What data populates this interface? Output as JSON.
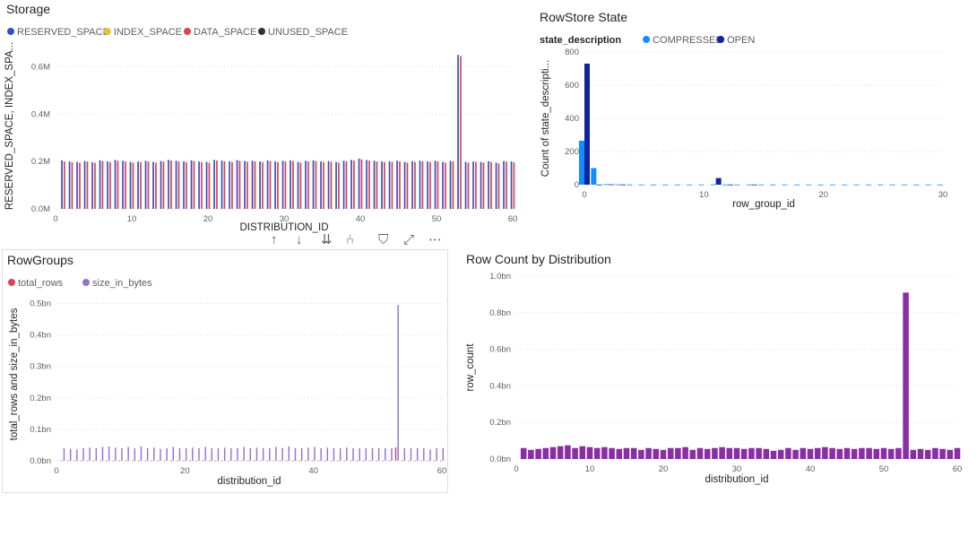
{
  "charts": [
    {
      "id": "storage",
      "chart_data": {
        "type": "bar",
        "title": "Storage",
        "xlabel": "DISTRIBUTION_ID",
        "ylabel": "RESERVED_SPACE, INDEX_SPA...",
        "xlim": [
          0,
          60
        ],
        "ylim": [
          0,
          0.7
        ],
        "x_ticks": [
          0,
          10,
          20,
          30,
          40,
          50,
          60
        ],
        "y_ticks": [
          {
            "v": 0,
            "label": "0.0M"
          },
          {
            "v": 0.2,
            "label": "0.2M"
          },
          {
            "v": 0.4,
            "label": "0.4M"
          },
          {
            "v": 0.6,
            "label": "0.6M"
          }
        ],
        "grid": true,
        "legend_position": "top-left",
        "x": [
          1,
          2,
          3,
          4,
          5,
          6,
          7,
          8,
          9,
          10,
          11,
          12,
          13,
          14,
          15,
          16,
          17,
          18,
          19,
          20,
          21,
          22,
          23,
          24,
          25,
          26,
          27,
          28,
          29,
          30,
          31,
          32,
          33,
          34,
          35,
          36,
          37,
          38,
          39,
          40,
          41,
          42,
          43,
          44,
          45,
          46,
          47,
          48,
          49,
          50,
          51,
          52,
          53,
          54,
          55,
          56,
          57,
          58,
          59,
          60
        ],
        "series": [
          {
            "name": "RESERVED_SPACE",
            "color": "#3a4cc0",
            "values": [
              0.205,
              0.2,
              0.198,
              0.202,
              0.197,
              0.205,
              0.2,
              0.207,
              0.203,
              0.198,
              0.2,
              0.203,
              0.198,
              0.202,
              0.207,
              0.203,
              0.2,
              0.205,
              0.2,
              0.198,
              0.207,
              0.204,
              0.2,
              0.206,
              0.202,
              0.203,
              0.2,
              0.205,
              0.2,
              0.203,
              0.205,
              0.198,
              0.203,
              0.205,
              0.2,
              0.202,
              0.198,
              0.203,
              0.207,
              0.212,
              0.206,
              0.203,
              0.2,
              0.201,
              0.203,
              0.198,
              0.201,
              0.203,
              0.2,
              0.203,
              0.198,
              0.203,
              0.65,
              0.198,
              0.2,
              0.198,
              0.201,
              0.195,
              0.202,
              0.2
            ]
          },
          {
            "name": "INDEX_SPACE",
            "color": "#e8c234",
            "values": [
              0,
              0,
              0,
              0,
              0,
              0,
              0,
              0,
              0,
              0,
              0,
              0,
              0,
              0,
              0,
              0,
              0,
              0,
              0,
              0,
              0,
              0,
              0,
              0,
              0,
              0,
              0,
              0,
              0,
              0,
              0,
              0,
              0,
              0,
              0,
              0,
              0,
              0,
              0,
              0,
              0,
              0,
              0,
              0,
              0,
              0,
              0,
              0,
              0,
              0,
              0,
              0,
              0,
              0,
              0,
              0,
              0,
              0,
              0,
              0
            ]
          },
          {
            "name": "DATA_SPACE",
            "color": "#d64550",
            "values": [
              0.2,
              0.197,
              0.195,
              0.2,
              0.194,
              0.202,
              0.197,
              0.203,
              0.2,
              0.195,
              0.197,
              0.2,
              0.195,
              0.199,
              0.204,
              0.2,
              0.197,
              0.202,
              0.197,
              0.195,
              0.204,
              0.201,
              0.197,
              0.203,
              0.199,
              0.2,
              0.197,
              0.202,
              0.197,
              0.2,
              0.202,
              0.195,
              0.2,
              0.202,
              0.197,
              0.199,
              0.195,
              0.2,
              0.204,
              0.209,
              0.203,
              0.2,
              0.197,
              0.198,
              0.2,
              0.195,
              0.198,
              0.2,
              0.197,
              0.2,
              0.195,
              0.2,
              0.645,
              0.195,
              0.197,
              0.195,
              0.198,
              0.192,
              0.199,
              0.197
            ]
          },
          {
            "name": "UNUSED_SPACE",
            "color": "#333333",
            "values": [
              0,
              0,
              0,
              0,
              0,
              0,
              0,
              0,
              0,
              0,
              0,
              0,
              0,
              0,
              0,
              0,
              0,
              0,
              0,
              0,
              0,
              0,
              0,
              0,
              0,
              0,
              0,
              0,
              0,
              0,
              0,
              0,
              0,
              0,
              0,
              0,
              0,
              0,
              0,
              0,
              0,
              0,
              0,
              0,
              0,
              0,
              0,
              0,
              0,
              0,
              0,
              0,
              0,
              0,
              0,
              0,
              0,
              0,
              0,
              0
            ]
          }
        ]
      }
    },
    {
      "id": "rowstore",
      "chart_data": {
        "type": "bar",
        "title": "RowStore State",
        "legend_title": "state_description",
        "xlabel": "row_group_id",
        "ylabel": "Count of state_descripti...",
        "xlim": [
          0,
          30
        ],
        "ylim": [
          0,
          800
        ],
        "x_ticks": [
          0,
          10,
          20,
          30
        ],
        "y_ticks": [
          {
            "v": 0,
            "label": "0"
          },
          {
            "v": 200,
            "label": "200"
          },
          {
            "v": 400,
            "label": "400"
          },
          {
            "v": 600,
            "label": "600"
          },
          {
            "v": 800,
            "label": "800"
          }
        ],
        "grid": true,
        "legend_position": "top-left",
        "x": [
          0,
          1,
          2,
          3,
          4,
          5,
          6,
          7,
          8,
          9,
          10,
          11,
          12,
          13,
          14,
          15,
          16,
          17,
          18,
          19,
          20,
          21,
          22,
          23,
          24,
          25,
          26,
          27,
          28,
          29,
          30
        ],
        "series": [
          {
            "name": "COMPRESSED",
            "color": "#118dff",
            "values": [
              265,
              100,
              3,
              2,
              1,
              1,
              1,
              1,
              1,
              1,
              1,
              2,
              1,
              1,
              1,
              1,
              1,
              1,
              1,
              1,
              1,
              1,
              1,
              1,
              1,
              1,
              1,
              1,
              1,
              1,
              1
            ]
          },
          {
            "name": "OPEN",
            "color": "#12239e",
            "values": [
              730,
              1,
              2,
              1,
              0,
              0,
              0,
              0,
              0,
              0,
              0,
              40,
              1,
              0,
              1,
              0,
              0,
              0,
              0,
              0,
              0,
              0,
              0,
              0,
              0,
              0,
              0,
              0,
              0,
              0,
              0
            ]
          }
        ]
      }
    },
    {
      "id": "rowgroups",
      "chart_data": {
        "type": "bar",
        "title": "RowGroups",
        "xlabel": "distribution_id",
        "ylabel": "total_rows and size_in_bytes",
        "xlim": [
          0,
          60
        ],
        "ylim": [
          0,
          0.55
        ],
        "x_ticks": [
          0,
          20,
          40,
          60
        ],
        "y_ticks": [
          {
            "v": 0,
            "label": "0.0bn"
          },
          {
            "v": 0.1,
            "label": "0.1bn"
          },
          {
            "v": 0.2,
            "label": "0.2bn"
          },
          {
            "v": 0.3,
            "label": "0.3bn"
          },
          {
            "v": 0.4,
            "label": "0.4bn"
          },
          {
            "v": 0.5,
            "label": "0.5bn"
          }
        ],
        "grid": true,
        "legend_position": "top-left",
        "x": [
          1,
          2,
          3,
          4,
          5,
          6,
          7,
          8,
          9,
          10,
          11,
          12,
          13,
          14,
          15,
          16,
          17,
          18,
          19,
          20,
          21,
          22,
          23,
          24,
          25,
          26,
          27,
          28,
          29,
          30,
          31,
          32,
          33,
          34,
          35,
          36,
          37,
          38,
          39,
          40,
          41,
          42,
          43,
          44,
          45,
          46,
          47,
          48,
          49,
          50,
          51,
          52,
          53,
          54,
          55,
          56,
          57,
          58,
          59,
          60
        ],
        "series": [
          {
            "name": "total_rows",
            "color": "#d64550",
            "values": [
              0.001,
              0.001,
              0.001,
              0.001,
              0.001,
              0.001,
              0.001,
              0.001,
              0.001,
              0.001,
              0.001,
              0.001,
              0.001,
              0.001,
              0.001,
              0.001,
              0.001,
              0.001,
              0.001,
              0.001,
              0.001,
              0.001,
              0.001,
              0.001,
              0.001,
              0.001,
              0.001,
              0.001,
              0.001,
              0.001,
              0.001,
              0.001,
              0.001,
              0.001,
              0.001,
              0.001,
              0.001,
              0.001,
              0.001,
              0.001,
              0.001,
              0.001,
              0.001,
              0.001,
              0.001,
              0.001,
              0.001,
              0.001,
              0.001,
              0.001,
              0.001,
              0.001,
              0.042,
              0.001,
              0.001,
              0.001,
              0.001,
              0.001,
              0.001,
              0.001
            ]
          },
          {
            "name": "size_in_bytes",
            "color": "#8e72d6",
            "values": [
              0.04,
              0.038,
              0.036,
              0.04,
              0.042,
              0.04,
              0.044,
              0.046,
              0.042,
              0.04,
              0.044,
              0.04,
              0.046,
              0.04,
              0.042,
              0.038,
              0.04,
              0.044,
              0.04,
              0.04,
              0.042,
              0.04,
              0.044,
              0.04,
              0.04,
              0.042,
              0.04,
              0.04,
              0.044,
              0.04,
              0.042,
              0.04,
              0.04,
              0.044,
              0.04,
              0.046,
              0.04,
              0.04,
              0.042,
              0.044,
              0.04,
              0.042,
              0.04,
              0.04,
              0.042,
              0.04,
              0.04,
              0.04,
              0.04,
              0.04,
              0.04,
              0.04,
              0.495,
              0.04,
              0.04,
              0.04,
              0.04,
              0.036,
              0.04,
              0.04
            ]
          }
        ]
      }
    },
    {
      "id": "rowcount",
      "chart_data": {
        "type": "bar",
        "title": "Row Count by Distribution",
        "xlabel": "distribution_id",
        "ylabel": "row_count",
        "xlim": [
          0,
          60
        ],
        "ylim": [
          0,
          1.0
        ],
        "x_ticks": [
          0,
          10,
          20,
          30,
          40,
          50,
          60
        ],
        "y_ticks": [
          {
            "v": 0,
            "label": "0.0bn"
          },
          {
            "v": 0.2,
            "label": "0.2bn"
          },
          {
            "v": 0.4,
            "label": "0.4bn"
          },
          {
            "v": 0.6,
            "label": "0.6bn"
          },
          {
            "v": 0.8,
            "label": "0.8bn"
          },
          {
            "v": 1.0,
            "label": "1.0bn"
          }
        ],
        "grid": true,
        "x": [
          1,
          2,
          3,
          4,
          5,
          6,
          7,
          8,
          9,
          10,
          11,
          12,
          13,
          14,
          15,
          16,
          17,
          18,
          19,
          20,
          21,
          22,
          23,
          24,
          25,
          26,
          27,
          28,
          29,
          30,
          31,
          32,
          33,
          34,
          35,
          36,
          37,
          38,
          39,
          40,
          41,
          42,
          43,
          44,
          45,
          46,
          47,
          48,
          49,
          50,
          51,
          52,
          53,
          54,
          55,
          56,
          57,
          58,
          59,
          60
        ],
        "series": [
          {
            "name": "row_count",
            "color": "#8a2ea3",
            "values": [
              0.06,
              0.05,
              0.055,
              0.06,
              0.065,
              0.07,
              0.075,
              0.06,
              0.07,
              0.065,
              0.06,
              0.065,
              0.06,
              0.055,
              0.06,
              0.06,
              0.05,
              0.06,
              0.055,
              0.05,
              0.06,
              0.06,
              0.065,
              0.05,
              0.06,
              0.055,
              0.06,
              0.065,
              0.06,
              0.06,
              0.055,
              0.06,
              0.06,
              0.055,
              0.045,
              0.05,
              0.06,
              0.05,
              0.06,
              0.055,
              0.06,
              0.065,
              0.06,
              0.055,
              0.06,
              0.055,
              0.06,
              0.06,
              0.055,
              0.06,
              0.055,
              0.06,
              0.91,
              0.05,
              0.055,
              0.05,
              0.06,
              0.055,
              0.05,
              0.06
            ]
          }
        ]
      }
    }
  ],
  "toolbar": {
    "icons": [
      "drill-up-icon",
      "drill-down-icon",
      "expand-next-level-icon",
      "expand-hierarchy-icon",
      "filter-icon",
      "focus-mode-icon",
      "more-options-icon"
    ],
    "glyphs": [
      "↑",
      "↓",
      "⇊",
      "⑃",
      "⛉",
      "⤢",
      "⋯"
    ]
  }
}
